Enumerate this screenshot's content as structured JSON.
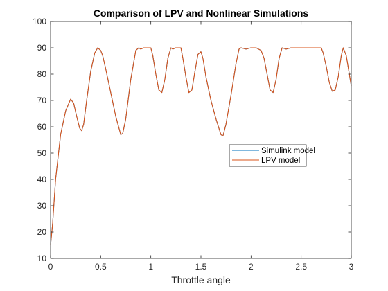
{
  "chart_data": {
    "type": "line",
    "title": "Comparison of LPV and Nonlinear Simulations",
    "xlabel": "Throttle angle",
    "ylabel": "",
    "xlim": [
      0,
      3
    ],
    "ylim": [
      10,
      100
    ],
    "xticks": [
      0,
      0.5,
      1,
      1.5,
      2,
      2.5,
      3
    ],
    "xtick_labels": [
      "0",
      "0.5",
      "1",
      "1.5",
      "2",
      "2.5",
      "3"
    ],
    "yticks": [
      10,
      20,
      30,
      40,
      50,
      60,
      70,
      80,
      90,
      100
    ],
    "ytick_labels": [
      "10",
      "20",
      "30",
      "40",
      "50",
      "60",
      "70",
      "80",
      "90",
      "100"
    ],
    "grid": false,
    "legend_position": "right-center",
    "series": [
      {
        "name": "Simulink model",
        "color": "#0072BD",
        "x": [
          0,
          0.02,
          0.05,
          0.1,
          0.15,
          0.2,
          0.23,
          0.26,
          0.29,
          0.31,
          0.33,
          0.36,
          0.4,
          0.44,
          0.47,
          0.5,
          0.52,
          0.55,
          0.6,
          0.65,
          0.7,
          0.72,
          0.75,
          0.8,
          0.85,
          0.88,
          0.9,
          0.93,
          1.0,
          1.02,
          1.05,
          1.08,
          1.11,
          1.14,
          1.17,
          1.2,
          1.22,
          1.25,
          1.3,
          1.32,
          1.35,
          1.38,
          1.41,
          1.44,
          1.47,
          1.5,
          1.52,
          1.55,
          1.6,
          1.65,
          1.7,
          1.72,
          1.75,
          1.8,
          1.85,
          1.88,
          1.9,
          1.95,
          2.0,
          2.05,
          2.1,
          2.13,
          2.16,
          2.19,
          2.22,
          2.25,
          2.28,
          2.31,
          2.35,
          2.4,
          2.5,
          2.6,
          2.7,
          2.72,
          2.75,
          2.78,
          2.81,
          2.84,
          2.87,
          2.9,
          2.92,
          2.95,
          3.0
        ],
        "y": [
          15,
          23,
          40,
          57,
          66,
          70.5,
          69,
          64,
          59.5,
          58.5,
          61,
          70,
          81,
          88,
          90,
          89,
          87,
          82,
          73,
          64,
          57,
          57.5,
          63,
          78,
          89,
          90,
          89.5,
          90,
          90,
          87,
          80,
          74,
          73,
          78,
          86,
          90,
          89.5,
          90,
          90,
          86,
          79,
          73,
          74,
          81,
          87.5,
          88.5,
          86,
          79,
          70,
          63,
          57,
          56.5,
          61,
          72,
          84,
          89.5,
          90,
          89.5,
          90,
          90,
          89,
          86,
          80,
          74,
          73,
          78,
          86,
          90,
          89.5,
          90,
          90,
          90,
          90,
          88,
          83,
          77,
          73.5,
          74,
          79,
          87,
          90,
          87,
          75.5
        ]
      },
      {
        "name": "LPV model",
        "color": "#D95319",
        "x": [
          0,
          0.02,
          0.05,
          0.1,
          0.15,
          0.2,
          0.23,
          0.26,
          0.29,
          0.31,
          0.33,
          0.36,
          0.4,
          0.44,
          0.47,
          0.5,
          0.52,
          0.55,
          0.6,
          0.65,
          0.7,
          0.72,
          0.75,
          0.8,
          0.85,
          0.88,
          0.9,
          0.93,
          1.0,
          1.02,
          1.05,
          1.08,
          1.11,
          1.14,
          1.17,
          1.2,
          1.22,
          1.25,
          1.3,
          1.32,
          1.35,
          1.38,
          1.41,
          1.44,
          1.47,
          1.5,
          1.52,
          1.55,
          1.6,
          1.65,
          1.7,
          1.72,
          1.75,
          1.8,
          1.85,
          1.88,
          1.9,
          1.95,
          2.0,
          2.05,
          2.1,
          2.13,
          2.16,
          2.19,
          2.22,
          2.25,
          2.28,
          2.31,
          2.35,
          2.4,
          2.5,
          2.6,
          2.7,
          2.72,
          2.75,
          2.78,
          2.81,
          2.84,
          2.87,
          2.9,
          2.92,
          2.95,
          3.0
        ],
        "y": [
          15,
          23,
          40,
          57,
          66,
          70.5,
          69,
          64,
          59.5,
          58.5,
          61,
          70,
          81,
          88,
          90,
          89,
          87,
          82,
          73,
          64,
          57,
          57.5,
          63,
          78,
          89,
          90,
          89.5,
          90,
          90,
          87,
          80,
          74,
          73,
          78,
          86,
          90,
          89.5,
          90,
          90,
          86,
          79,
          73,
          74,
          81,
          87.5,
          88.5,
          86,
          79,
          70,
          63,
          57,
          56.5,
          61,
          72,
          84,
          89.5,
          90,
          89.5,
          90,
          90,
          89,
          86,
          80,
          74,
          73,
          78,
          86,
          90,
          89.5,
          90,
          90,
          90,
          90,
          88,
          83,
          77,
          73.5,
          74,
          79,
          87,
          90,
          87,
          75.5
        ]
      }
    ]
  }
}
